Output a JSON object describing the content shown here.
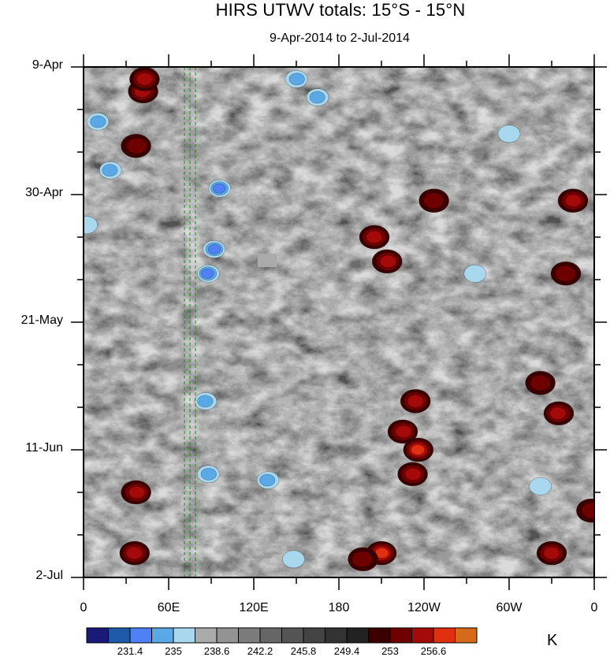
{
  "chart_data": {
    "type": "heatmap",
    "title": "HIRS UTWV totals: 15°S - 15°N",
    "subtitle": "9-Apr-2014 to 2-Jul-2014",
    "y_tick_labels": [
      "9-Apr",
      "30-Apr",
      "21-May",
      "11-Jun",
      "2-Jul"
    ],
    "x_tick_labels": [
      "0",
      "60E",
      "120E",
      "180",
      "120W",
      "60W",
      "0"
    ],
    "colorbar_units": "K",
    "colorbar_labels": [
      "231.4",
      "235",
      "238.6",
      "242.2",
      "245.8",
      "249.4",
      "253",
      "256.6"
    ],
    "colorbar_levels": [
      229.6,
      231.4,
      233.2,
      235,
      236.8,
      238.6,
      240.4,
      242.2,
      244,
      245.8,
      247.6,
      249.4,
      251.2,
      253,
      254.8,
      256.6,
      258.4
    ],
    "colorbar_colors": [
      "#1a1a78",
      "#1f5aa8",
      "#4f80f5",
      "#5aa8e6",
      "#a8d7ee",
      "#aaaaaa",
      "#939393",
      "#7c7c7c",
      "#666666",
      "#555555",
      "#444444",
      "#333333",
      "#222222",
      "#3a0000",
      "#6e0000",
      "#a50a0a",
      "#e03010",
      "#d46a1a"
    ],
    "x_range": [
      "0",
      "0"
    ],
    "y_range": [
      "9-Apr",
      "2-Jul"
    ],
    "grid": false,
    "features": [
      {
        "kind": "warm",
        "lon": 42,
        "day": 4,
        "value": 255.5
      },
      {
        "kind": "warm",
        "lon": 43,
        "day": 2,
        "value": 255.8
      },
      {
        "kind": "warm",
        "lon": 37,
        "day": 13,
        "value": 254.5
      },
      {
        "kind": "cold",
        "lon": 96,
        "day": 20,
        "value": 231.8
      },
      {
        "kind": "cold",
        "lon": 92,
        "day": 30,
        "value": 232.2
      },
      {
        "kind": "cold",
        "lon": 88,
        "day": 34,
        "value": 232.6
      },
      {
        "kind": "warm",
        "lon": 205,
        "day": 28,
        "value": 255.8
      },
      {
        "kind": "warm",
        "lon": 214,
        "day": 32,
        "value": 256.0
      },
      {
        "kind": "warm",
        "lon": 247,
        "day": 22,
        "value": 254.7
      },
      {
        "kind": "warm",
        "lon": 345,
        "day": 22,
        "value": 255.2
      },
      {
        "kind": "warm",
        "lon": 340,
        "day": 34,
        "value": 254.4
      },
      {
        "kind": "warm",
        "lon": 234,
        "day": 55,
        "value": 256.4
      },
      {
        "kind": "warm",
        "lon": 225,
        "day": 60,
        "value": 255.5
      },
      {
        "kind": "warm",
        "lon": 236,
        "day": 63,
        "value": 258.2
      },
      {
        "kind": "warm",
        "lon": 232,
        "day": 67,
        "value": 255.0
      },
      {
        "kind": "warm",
        "lon": 335,
        "day": 57,
        "value": 256.0
      },
      {
        "kind": "warm",
        "lon": 322,
        "day": 52,
        "value": 254.3
      },
      {
        "kind": "warm",
        "lon": 37,
        "day": 70,
        "value": 255.6
      },
      {
        "kind": "warm",
        "lon": 36,
        "day": 80,
        "value": 255.2
      },
      {
        "kind": "warm",
        "lon": 210,
        "day": 80,
        "value": 256.8
      },
      {
        "kind": "warm",
        "lon": 197,
        "day": 81,
        "value": 254.7
      },
      {
        "kind": "warm",
        "lon": 330,
        "day": 80,
        "value": 255.0
      },
      {
        "kind": "warm",
        "lon": 358,
        "day": 73,
        "value": 254.3
      },
      {
        "kind": "cold",
        "lon": 86,
        "day": 55,
        "value": 234.0
      },
      {
        "kind": "cold",
        "lon": 88,
        "day": 67,
        "value": 235.0
      },
      {
        "kind": "cold",
        "lon": 130,
        "day": 68,
        "value": 233.5
      },
      {
        "kind": "cold",
        "lon": 148,
        "day": 81,
        "value": 235.3
      },
      {
        "kind": "cold",
        "lon": 150,
        "day": 2,
        "value": 234.5
      },
      {
        "kind": "cold",
        "lon": 165,
        "day": 5,
        "value": 234.3
      },
      {
        "kind": "cold",
        "lon": 10,
        "day": 9,
        "value": 234.4
      },
      {
        "kind": "cold",
        "lon": 19,
        "day": 17,
        "value": 234.5
      },
      {
        "kind": "cold",
        "lon": 2,
        "day": 26,
        "value": 235.2
      },
      {
        "kind": "cold",
        "lon": 276,
        "day": 34,
        "value": 235.1
      },
      {
        "kind": "cold",
        "lon": 300,
        "day": 11,
        "value": 235.8
      },
      {
        "kind": "cold",
        "lon": 322,
        "day": 69,
        "value": 235.9
      }
    ]
  }
}
